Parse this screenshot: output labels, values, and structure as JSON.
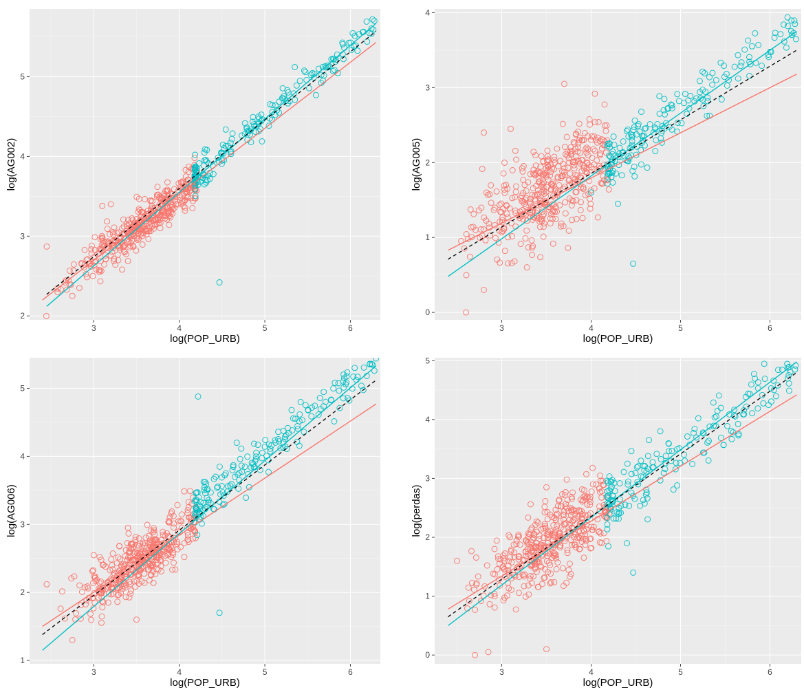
{
  "colors": {
    "red_group": "#f8766d",
    "cyan_group": "#00bfc4",
    "overall_fit": "#000000",
    "panel_background": "#ebebeb",
    "grid": "#ffffff"
  },
  "chart_data": [
    {
      "type": "scatter",
      "xlabel": "log(POP_URB)",
      "ylabel": "log(AG002)",
      "x_ticks": [
        3,
        4,
        5,
        6
      ],
      "y_ticks": [
        2,
        3,
        4,
        5
      ],
      "xlim": [
        2.25,
        6.35
      ],
      "ylim": [
        1.95,
        5.85
      ],
      "grid": true,
      "split_x": 4.18,
      "series": [
        {
          "color": "red",
          "x_range": [
            2.4,
            4.2
          ],
          "fit": {
            "slope": 0.83,
            "intercept": 0.2
          },
          "noise": 0.13,
          "n": 420,
          "outliers": [
            [
              2.45,
              2.87
            ],
            [
              3.1,
              3.38
            ],
            [
              3.2,
              3.4
            ],
            [
              2.75,
              2.25
            ]
          ]
        },
        {
          "color": "cyan",
          "x_range": [
            4.18,
            6.3
          ],
          "fit": {
            "slope": 0.92,
            "intercept": -0.1
          },
          "noise": 0.11,
          "n": 180,
          "outliers": [
            [
              4.47,
              2.42
            ],
            [
              6.28,
              5.7
            ],
            [
              4.5,
              3.95
            ]
          ]
        }
      ],
      "lines": [
        {
          "color": "red",
          "from": [
            2.4,
            2.2
          ],
          "to": [
            6.3,
            5.43
          ]
        },
        {
          "color": "cyan",
          "from": [
            2.45,
            2.12
          ],
          "to": [
            6.3,
            5.67
          ]
        },
        {
          "color": "black",
          "style": "dashed",
          "from": [
            2.45,
            2.27
          ],
          "to": [
            6.3,
            5.57
          ]
        }
      ]
    },
    {
      "type": "scatter",
      "xlabel": "log(POP_URB)",
      "ylabel": "log(AG005)",
      "x_ticks": [
        3,
        4,
        5,
        6
      ],
      "y_ticks": [
        0,
        1,
        2,
        3,
        4
      ],
      "xlim": [
        2.25,
        6.35
      ],
      "ylim": [
        -0.1,
        4.05
      ],
      "grid": true,
      "split_x": 4.18,
      "series": [
        {
          "color": "red",
          "x_range": [
            2.4,
            4.2
          ],
          "fit": {
            "slope": 0.67,
            "intercept": -0.7
          },
          "noise": 0.32,
          "n": 420,
          "outliers": [
            [
              2.6,
              0.0
            ],
            [
              2.8,
              0.3
            ],
            [
              3.1,
              2.45
            ],
            [
              3.7,
              3.05
            ],
            [
              2.8,
              2.4
            ]
          ]
        },
        {
          "color": "cyan",
          "x_range": [
            4.18,
            6.3
          ],
          "fit": {
            "slope": 0.85,
            "intercept": -1.55
          },
          "noise": 0.16,
          "n": 180,
          "outliers": [
            [
              4.47,
              0.65
            ],
            [
              4.3,
              1.45
            ],
            [
              6.28,
              3.85
            ],
            [
              4.0,
              1.6
            ]
          ]
        }
      ],
      "lines": [
        {
          "color": "red",
          "from": [
            2.4,
            0.83
          ],
          "to": [
            6.3,
            3.18
          ]
        },
        {
          "color": "cyan",
          "from": [
            2.4,
            0.48
          ],
          "to": [
            6.3,
            3.75
          ]
        },
        {
          "color": "black",
          "style": "dashed",
          "from": [
            2.4,
            0.71
          ],
          "to": [
            6.3,
            3.5
          ]
        }
      ]
    },
    {
      "type": "scatter",
      "xlabel": "log(POP_URB)",
      "ylabel": "log(AG006)",
      "x_ticks": [
        3,
        4,
        5,
        6
      ],
      "y_ticks": [
        1,
        2,
        3,
        4,
        5
      ],
      "xlim": [
        2.25,
        6.35
      ],
      "ylim": [
        0.95,
        5.45
      ],
      "grid": true,
      "split_x": 4.18,
      "series": [
        {
          "color": "red",
          "x_range": [
            2.4,
            4.2
          ],
          "fit": {
            "slope": 0.85,
            "intercept": -0.55
          },
          "noise": 0.2,
          "n": 420,
          "outliers": [
            [
              2.75,
              1.3
            ],
            [
              3.5,
              1.6
            ],
            [
              2.45,
              2.12
            ],
            [
              3.4,
              2.95
            ]
          ]
        },
        {
          "color": "cyan",
          "x_range": [
            4.18,
            6.3
          ],
          "fit": {
            "slope": 1.05,
            "intercept": -1.2
          },
          "noise": 0.15,
          "n": 180,
          "outliers": [
            [
              4.47,
              1.7
            ],
            [
              4.22,
              4.88
            ],
            [
              6.28,
              5.26
            ],
            [
              6.05,
              5.3
            ]
          ]
        }
      ],
      "lines": [
        {
          "color": "red",
          "from": [
            2.4,
            1.5
          ],
          "to": [
            6.3,
            4.77
          ]
        },
        {
          "color": "cyan",
          "from": [
            2.4,
            1.15
          ],
          "to": [
            6.3,
            5.33
          ]
        },
        {
          "color": "black",
          "style": "dashed",
          "from": [
            2.4,
            1.38
          ],
          "to": [
            6.3,
            5.12
          ]
        }
      ]
    },
    {
      "type": "scatter",
      "xlabel": "log(POP_URB)",
      "ylabel": "log(perdas)",
      "x_ticks": [
        3,
        4,
        5,
        6
      ],
      "y_ticks": [
        0,
        1,
        2,
        3,
        4,
        5
      ],
      "xlim": [
        2.25,
        6.35
      ],
      "ylim": [
        -0.15,
        5.05
      ],
      "grid": true,
      "split_x": 4.18,
      "series": [
        {
          "color": "red",
          "x_range": [
            2.4,
            4.2
          ],
          "fit": {
            "slope": 0.93,
            "intercept": -1.35
          },
          "noise": 0.33,
          "n": 420,
          "outliers": [
            [
              2.7,
              0.0
            ],
            [
              2.85,
              0.05
            ],
            [
              3.5,
              0.1
            ],
            [
              3.5,
              2.85
            ],
            [
              2.5,
              1.6
            ]
          ]
        },
        {
          "color": "cyan",
          "x_range": [
            4.18,
            6.3
          ],
          "fit": {
            "slope": 1.1,
            "intercept": -2.05
          },
          "noise": 0.26,
          "n": 180,
          "outliers": [
            [
              4.47,
              1.4
            ],
            [
              4.4,
              1.9
            ],
            [
              6.28,
              4.85
            ],
            [
              6.2,
              4.7
            ]
          ]
        }
      ],
      "lines": [
        {
          "color": "red",
          "from": [
            2.4,
            0.78
          ],
          "to": [
            6.3,
            4.42
          ]
        },
        {
          "color": "cyan",
          "from": [
            2.4,
            0.5
          ],
          "to": [
            6.3,
            4.98
          ]
        },
        {
          "color": "black",
          "style": "dashed",
          "from": [
            2.4,
            0.65
          ],
          "to": [
            6.3,
            4.8
          ]
        }
      ]
    }
  ]
}
